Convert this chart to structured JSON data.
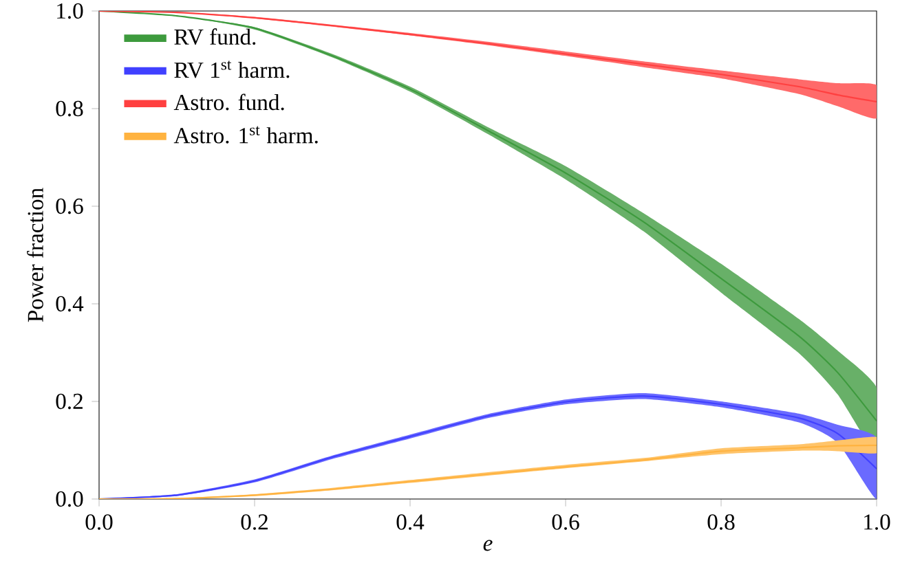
{
  "chart_data": {
    "type": "line",
    "xlabel": "e",
    "ylabel": "Power fraction",
    "xlim": [
      0,
      1
    ],
    "ylim": [
      0,
      1
    ],
    "xticks": [
      {
        "value": 0,
        "label": "0.0"
      },
      {
        "value": 0.2,
        "label": "0.2"
      },
      {
        "value": 0.4,
        "label": "0.4"
      },
      {
        "value": 0.6,
        "label": "0.6"
      },
      {
        "value": 0.8,
        "label": "0.8"
      },
      {
        "value": 1,
        "label": "1.0"
      }
    ],
    "yticks": [
      {
        "value": 0,
        "label": "0.0"
      },
      {
        "value": 0.2,
        "label": "0.2"
      },
      {
        "value": 0.4,
        "label": "0.4"
      },
      {
        "value": 0.6,
        "label": "0.6"
      },
      {
        "value": 0.8,
        "label": "0.8"
      },
      {
        "value": 1,
        "label": "1.0"
      }
    ],
    "legend": "top left",
    "grid": false,
    "x": [
      0,
      0.1,
      0.2,
      0.3,
      0.4,
      0.5,
      0.6,
      0.7,
      0.8,
      0.9,
      0.95,
      1.0
    ],
    "series": [
      {
        "name": "RV fund.",
        "color": "#3d9a3d",
        "values": [
          1,
          0.99,
          0.965,
          0.908,
          0.84,
          0.755,
          0.668,
          0.568,
          0.452,
          0.334,
          0.259,
          0.16
        ],
        "lower": [
          1,
          0.99,
          0.962,
          0.905,
          0.835,
          0.748,
          0.655,
          0.549,
          0.423,
          0.299,
          0.214,
          0.093
        ],
        "upper": [
          1,
          0.99,
          0.967,
          0.912,
          0.845,
          0.762,
          0.682,
          0.586,
          0.482,
          0.369,
          0.304,
          0.228
        ]
      },
      {
        "name": "RV 1$^{st}$ harm.",
        "color": "#4040ff",
        "values": [
          0,
          0.008,
          0.037,
          0.086,
          0.128,
          0.17,
          0.199,
          0.211,
          0.194,
          0.166,
          0.134,
          0.062
        ],
        "lower": [
          0,
          0.006,
          0.034,
          0.082,
          0.124,
          0.166,
          0.194,
          0.205,
          0.188,
          0.157,
          0.115,
          0
        ],
        "upper": [
          0,
          0.01,
          0.04,
          0.089,
          0.132,
          0.174,
          0.204,
          0.217,
          0.2,
          0.175,
          0.152,
          0.125
        ]
      },
      {
        "name": "Astro. fund.",
        "color": "#ff4040",
        "values": [
          1,
          0.997,
          0.986,
          0.97,
          0.952,
          0.933,
          0.912,
          0.891,
          0.87,
          0.845,
          0.828,
          0.814
        ],
        "lower": [
          1,
          0.997,
          0.985,
          0.968,
          0.95,
          0.93,
          0.908,
          0.885,
          0.862,
          0.83,
          0.805,
          0.78
        ],
        "upper": [
          1,
          0.998,
          0.988,
          0.972,
          0.955,
          0.937,
          0.917,
          0.897,
          0.878,
          0.86,
          0.852,
          0.848
        ]
      },
      {
        "name": "Astro. 1$^{st}$ harm.",
        "color": "#ffb340",
        "values": [
          0,
          0.001,
          0.008,
          0.02,
          0.036,
          0.051,
          0.066,
          0.08,
          0.098,
          0.105,
          0.109,
          0.11
        ],
        "lower": [
          0,
          0.001,
          0.006,
          0.018,
          0.033,
          0.048,
          0.063,
          0.077,
          0.092,
          0.099,
          0.098,
          0.094
        ],
        "upper": [
          0,
          0.002,
          0.01,
          0.023,
          0.039,
          0.055,
          0.07,
          0.084,
          0.104,
          0.112,
          0.12,
          0.127
        ]
      }
    ]
  }
}
